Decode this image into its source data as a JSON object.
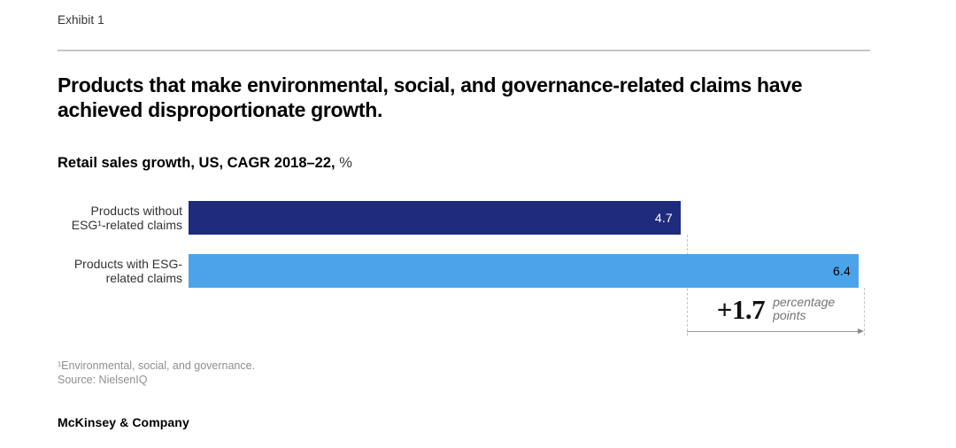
{
  "exhibit": {
    "label": "Exhibit 1"
  },
  "header": {
    "title": "Products that make environmental, social, and governance-related claims have achieved disproportionate growth.",
    "subtitle_bold": "Retail sales growth, US, CAGR 2018–22,",
    "subtitle_unit": "%"
  },
  "chart_data": {
    "type": "bar",
    "orientation": "horizontal",
    "title": "Retail sales growth, US, CAGR 2018–22, %",
    "xlabel": "",
    "ylabel": "",
    "xlim": [
      0,
      6.4
    ],
    "grid": false,
    "legend": false,
    "categories": [
      "Products without ESG¹-related claims",
      "Products with ESG-related claims"
    ],
    "series": [
      {
        "name": "Retail sales growth, US, CAGR 2018–22, %",
        "values": [
          4.7,
          6.4
        ]
      }
    ],
    "bars": [
      {
        "label": "Products without ESG¹-related claims",
        "value": 4.7,
        "display_value": "4.7",
        "color": "#1f2b7c",
        "value_text_color": "#ffffff"
      },
      {
        "label": "Products with ESG-related claims",
        "value": 6.4,
        "display_value": "6.4",
        "color": "#4ba4ea",
        "value_text_color": "#000000"
      }
    ],
    "annotation": {
      "delta": "+1.7",
      "unit_line1": "percentage",
      "unit_line2": "points",
      "spans_from_value": 4.7,
      "spans_to_value": 6.4
    }
  },
  "footnotes": {
    "line1": "¹Environmental, social, and governance.",
    "line2": "Source: NielsenIQ"
  },
  "brand": {
    "name": "McKinsey & Company"
  },
  "colors": {
    "navy": "#1f2b7c",
    "light_blue": "#4ba4ea",
    "divider_gray": "#c6c6c6",
    "guide_gray": "#c4c4c4",
    "arrow_gray": "#8a8a8a",
    "footnote_gray": "#8f8f8f"
  }
}
